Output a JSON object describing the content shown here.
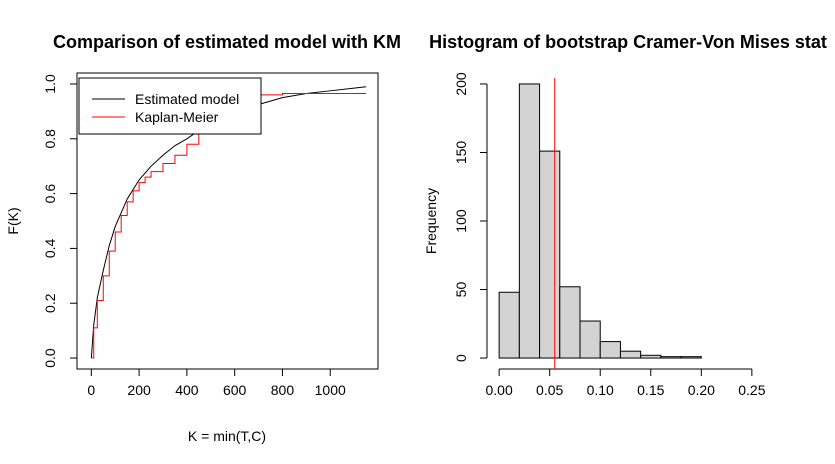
{
  "chart_data": [
    {
      "type": "line",
      "title": "Comparison of estimated model with KM",
      "xlabel": "K = min(T,C)",
      "ylabel": "F(K)",
      "xlim": [
        -60,
        1200
      ],
      "ylim": [
        -0.04,
        1.04
      ],
      "x_ticks": [
        0,
        200,
        400,
        600,
        800,
        1000
      ],
      "y_ticks": [
        0.0,
        0.2,
        0.4,
        0.6,
        0.8,
        1.0
      ],
      "x_tick_labels": [
        "0",
        "200",
        "400",
        "600",
        "800",
        "1000"
      ],
      "y_tick_labels": [
        "0.0",
        "0.2",
        "0.4",
        "0.6",
        "0.8",
        "1.0"
      ],
      "legend": {
        "position": "top-left",
        "entries": [
          "Estimated model",
          "Kaplan-Meier"
        ]
      },
      "series": [
        {
          "name": "Estimated model",
          "color": "#000000",
          "style": "smooth",
          "x": [
            0,
            10,
            25,
            50,
            75,
            100,
            150,
            200,
            250,
            300,
            350,
            400,
            450,
            500,
            550,
            600,
            650,
            700,
            800,
            900,
            1000,
            1100,
            1150
          ],
          "y": [
            0.0,
            0.12,
            0.22,
            0.32,
            0.41,
            0.48,
            0.58,
            0.65,
            0.7,
            0.74,
            0.775,
            0.8,
            0.83,
            0.855,
            0.875,
            0.895,
            0.91,
            0.925,
            0.95,
            0.965,
            0.975,
            0.985,
            0.99
          ]
        },
        {
          "name": "Kaplan-Meier",
          "color": "#ff0000",
          "style": "step",
          "x": [
            0,
            10,
            25,
            50,
            75,
            100,
            125,
            150,
            175,
            200,
            225,
            250,
            300,
            350,
            400,
            450,
            480,
            520,
            560,
            600,
            700,
            800,
            1150
          ],
          "y": [
            0.0,
            0.11,
            0.21,
            0.3,
            0.39,
            0.46,
            0.52,
            0.57,
            0.61,
            0.64,
            0.66,
            0.68,
            0.71,
            0.74,
            0.78,
            0.82,
            0.86,
            0.9,
            0.93,
            0.95,
            0.96,
            0.965,
            0.965
          ]
        }
      ]
    },
    {
      "type": "bar",
      "title": "Histogram of bootstrap Cramer-Von Mises stat",
      "xlabel": "",
      "ylabel": "Frequency",
      "xlim": [
        -0.012,
        0.262
      ],
      "ylim": [
        -8,
        208
      ],
      "x_ticks": [
        0.0,
        0.05,
        0.1,
        0.15,
        0.2,
        0.25
      ],
      "y_ticks": [
        0,
        50,
        100,
        150,
        200
      ],
      "x_tick_labels": [
        "0.00",
        "0.05",
        "0.10",
        "0.15",
        "0.20",
        "0.25"
      ],
      "y_tick_labels": [
        "0",
        "50",
        "100",
        "150",
        "200"
      ],
      "bin_width": 0.02,
      "bins": [
        {
          "x0": 0.0,
          "x1": 0.02,
          "count": 48
        },
        {
          "x0": 0.02,
          "x1": 0.04,
          "count": 200
        },
        {
          "x0": 0.04,
          "x1": 0.06,
          "count": 151
        },
        {
          "x0": 0.06,
          "x1": 0.08,
          "count": 52
        },
        {
          "x0": 0.08,
          "x1": 0.1,
          "count": 27
        },
        {
          "x0": 0.1,
          "x1": 0.12,
          "count": 12
        },
        {
          "x0": 0.12,
          "x1": 0.14,
          "count": 5
        },
        {
          "x0": 0.14,
          "x1": 0.16,
          "count": 2
        },
        {
          "x0": 0.16,
          "x1": 0.18,
          "count": 1
        },
        {
          "x0": 0.18,
          "x1": 0.2,
          "count": 1
        }
      ],
      "bar_fill": "#d3d3d3",
      "reference_line": {
        "x": 0.055,
        "color": "#ff0000"
      }
    }
  ]
}
